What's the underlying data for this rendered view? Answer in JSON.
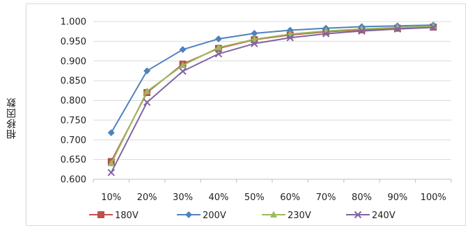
{
  "chart_data": {
    "type": "line",
    "ylabel": "相移因数",
    "categories": [
      "10%",
      "20%",
      "30%",
      "40%",
      "50%",
      "60%",
      "70%",
      "80%",
      "90%",
      "100%"
    ],
    "ylim": [
      0.6,
      1.0
    ],
    "yticks": [
      0.6,
      0.65,
      0.7,
      0.75,
      0.8,
      0.85,
      0.9,
      0.95,
      1.0
    ],
    "ytick_labels": [
      "0.600",
      "0.650",
      "0.700",
      "0.750",
      "0.800",
      "0.850",
      "0.900",
      "0.950",
      "1.000"
    ],
    "grid": true,
    "legend_position": "bottom",
    "series": [
      {
        "name": "180V",
        "marker": "square",
        "color": "#c0504d",
        "values": [
          0.645,
          0.82,
          0.892,
          0.932,
          0.954,
          0.966,
          0.974,
          0.979,
          0.983,
          0.986
        ]
      },
      {
        "name": "200V",
        "marker": "diamond",
        "color": "#4f81bd",
        "values": [
          0.718,
          0.875,
          0.929,
          0.956,
          0.97,
          0.978,
          0.983,
          0.987,
          0.989,
          0.991
        ]
      },
      {
        "name": "230V",
        "marker": "triangle",
        "color": "#9bbb59",
        "values": [
          0.64,
          0.823,
          0.889,
          0.934,
          0.955,
          0.968,
          0.976,
          0.981,
          0.985,
          0.988
        ]
      },
      {
        "name": "240V",
        "marker": "x",
        "color": "#8064a2",
        "values": [
          0.617,
          0.795,
          0.874,
          0.918,
          0.944,
          0.959,
          0.969,
          0.976,
          0.981,
          0.985
        ]
      }
    ]
  }
}
